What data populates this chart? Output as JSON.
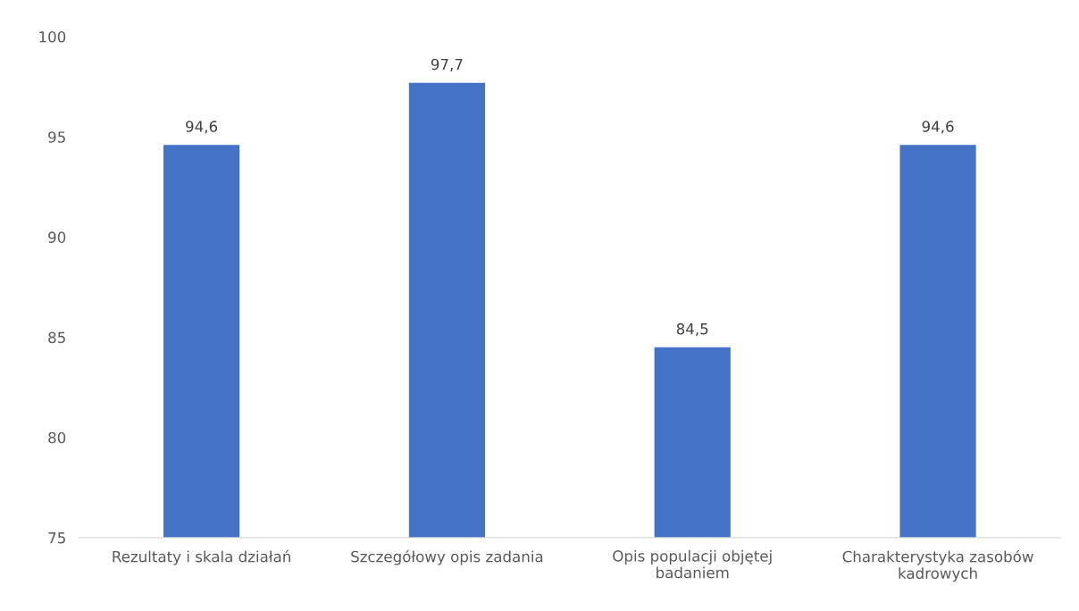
{
  "chart_data": {
    "type": "bar",
    "categories": [
      "Rezultaty i skala działań",
      "Szczegółowy opis zadania",
      "Opis populacji objętej\nbadaniem",
      "Charakterystyka zasobów\nkadrowych"
    ],
    "values": [
      94.6,
      97.7,
      84.5,
      94.6
    ],
    "value_labels": [
      "94,6",
      "97,7",
      "84,5",
      "94,6"
    ],
    "color": "#4472c4",
    "ylim": [
      75,
      100
    ],
    "yticks": [
      75,
      80,
      85,
      90,
      95,
      100
    ],
    "grid": false
  }
}
